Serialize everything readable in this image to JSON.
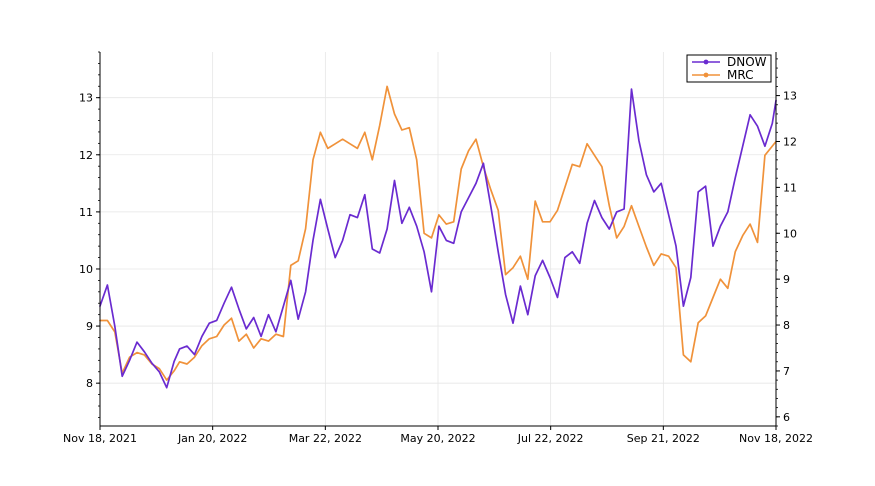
{
  "chart_data": {
    "type": "line",
    "grid": true,
    "legend_position": "top-right",
    "x_ticks": [
      "Nov 18, 2021",
      "Jan 20, 2022",
      "Mar 22, 2022",
      "May 20, 2022",
      "Jul 22, 2022",
      "Sep 21, 2022",
      "Nov 18, 2022"
    ],
    "x_range": [
      "2021-11-18",
      "2022-11-18"
    ],
    "y_left": {
      "ticks": [
        "8",
        "9",
        "10",
        "11",
        "12",
        "13"
      ],
      "ylim": [
        7.25,
        13.8
      ]
    },
    "y_right": {
      "ticks": [
        "6",
        "7",
        "8",
        "9",
        "10",
        "11",
        "12",
        "13"
      ],
      "ylim": [
        5.8,
        13.95
      ]
    },
    "series": [
      {
        "name": "DNOW",
        "axis": "left",
        "color": "#6a2bd0",
        "points": [
          [
            "2021-11-18",
            9.35
          ],
          [
            "2021-11-22",
            9.72
          ],
          [
            "2021-11-26",
            9.0
          ],
          [
            "2021-11-30",
            8.12
          ],
          [
            "2021-12-04",
            8.4
          ],
          [
            "2021-12-08",
            8.72
          ],
          [
            "2021-12-12",
            8.55
          ],
          [
            "2021-12-16",
            8.35
          ],
          [
            "2021-12-20",
            8.2
          ],
          [
            "2021-12-24",
            7.92
          ],
          [
            "2021-12-28",
            8.38
          ],
          [
            "2021-12-31",
            8.6
          ],
          [
            "2022-01-04",
            8.65
          ],
          [
            "2022-01-08",
            8.5
          ],
          [
            "2022-01-12",
            8.82
          ],
          [
            "2022-01-16",
            9.05
          ],
          [
            "2022-01-20",
            9.1
          ],
          [
            "2022-01-24",
            9.4
          ],
          [
            "2022-01-28",
            9.68
          ],
          [
            "2022-02-01",
            9.3
          ],
          [
            "2022-02-05",
            8.95
          ],
          [
            "2022-02-09",
            9.15
          ],
          [
            "2022-02-13",
            8.82
          ],
          [
            "2022-02-17",
            9.2
          ],
          [
            "2022-02-21",
            8.9
          ],
          [
            "2022-02-25",
            9.35
          ],
          [
            "2022-03-01",
            9.8
          ],
          [
            "2022-03-05",
            9.12
          ],
          [
            "2022-03-09",
            9.6
          ],
          [
            "2022-03-13",
            10.5
          ],
          [
            "2022-03-17",
            11.22
          ],
          [
            "2022-03-21",
            10.7
          ],
          [
            "2022-03-25",
            10.2
          ],
          [
            "2022-03-29",
            10.5
          ],
          [
            "2022-04-02",
            10.95
          ],
          [
            "2022-04-06",
            10.9
          ],
          [
            "2022-04-10",
            11.3
          ],
          [
            "2022-04-14",
            10.35
          ],
          [
            "2022-04-18",
            10.28
          ],
          [
            "2022-04-22",
            10.7
          ],
          [
            "2022-04-26",
            11.55
          ],
          [
            "2022-04-30",
            10.8
          ],
          [
            "2022-05-04",
            11.08
          ],
          [
            "2022-05-08",
            10.75
          ],
          [
            "2022-05-12",
            10.3
          ],
          [
            "2022-05-16",
            9.6
          ],
          [
            "2022-05-20",
            10.75
          ],
          [
            "2022-05-24",
            10.5
          ],
          [
            "2022-05-28",
            10.45
          ],
          [
            "2022-06-01",
            11.0
          ],
          [
            "2022-06-05",
            11.25
          ],
          [
            "2022-06-09",
            11.5
          ],
          [
            "2022-06-13",
            11.85
          ],
          [
            "2022-06-17",
            11.1
          ],
          [
            "2022-06-21",
            10.3
          ],
          [
            "2022-06-25",
            9.55
          ],
          [
            "2022-06-29",
            9.05
          ],
          [
            "2022-07-03",
            9.7
          ],
          [
            "2022-07-07",
            9.2
          ],
          [
            "2022-07-11",
            9.88
          ],
          [
            "2022-07-15",
            10.15
          ],
          [
            "2022-07-19",
            9.85
          ],
          [
            "2022-07-23",
            9.5
          ],
          [
            "2022-07-27",
            10.2
          ],
          [
            "2022-07-31",
            10.3
          ],
          [
            "2022-08-04",
            10.1
          ],
          [
            "2022-08-08",
            10.8
          ],
          [
            "2022-08-12",
            11.2
          ],
          [
            "2022-08-16",
            10.9
          ],
          [
            "2022-08-20",
            10.7
          ],
          [
            "2022-08-24",
            11.0
          ],
          [
            "2022-08-28",
            11.05
          ],
          [
            "2022-09-01",
            13.15
          ],
          [
            "2022-09-05",
            12.25
          ],
          [
            "2022-09-09",
            11.65
          ],
          [
            "2022-09-13",
            11.35
          ],
          [
            "2022-09-17",
            11.5
          ],
          [
            "2022-09-21",
            10.95
          ],
          [
            "2022-09-25",
            10.4
          ],
          [
            "2022-09-29",
            9.35
          ],
          [
            "2022-10-03",
            9.85
          ],
          [
            "2022-10-07",
            11.35
          ],
          [
            "2022-10-11",
            11.45
          ],
          [
            "2022-10-15",
            10.4
          ],
          [
            "2022-10-19",
            10.75
          ],
          [
            "2022-10-23",
            11.0
          ],
          [
            "2022-10-27",
            11.6
          ],
          [
            "2022-10-31",
            12.15
          ],
          [
            "2022-11-04",
            12.7
          ],
          [
            "2022-11-08",
            12.5
          ],
          [
            "2022-11-12",
            12.15
          ],
          [
            "2022-11-16",
            12.55
          ],
          [
            "2022-11-18",
            12.95
          ]
        ]
      },
      {
        "name": "MRC",
        "axis": "right",
        "color": "#f0923a",
        "points": [
          [
            "2021-11-18",
            8.1
          ],
          [
            "2021-11-22",
            8.1
          ],
          [
            "2021-11-26",
            7.85
          ],
          [
            "2021-11-30",
            6.95
          ],
          [
            "2021-12-04",
            7.3
          ],
          [
            "2021-12-08",
            7.4
          ],
          [
            "2021-12-12",
            7.35
          ],
          [
            "2021-12-16",
            7.15
          ],
          [
            "2021-12-20",
            7.05
          ],
          [
            "2021-12-24",
            6.8
          ],
          [
            "2021-12-28",
            7.0
          ],
          [
            "2021-12-31",
            7.2
          ],
          [
            "2022-01-04",
            7.15
          ],
          [
            "2022-01-08",
            7.3
          ],
          [
            "2022-01-12",
            7.55
          ],
          [
            "2022-01-16",
            7.7
          ],
          [
            "2022-01-20",
            7.75
          ],
          [
            "2022-01-24",
            8.0
          ],
          [
            "2022-01-28",
            8.15
          ],
          [
            "2022-02-01",
            7.65
          ],
          [
            "2022-02-05",
            7.8
          ],
          [
            "2022-02-09",
            7.5
          ],
          [
            "2022-02-13",
            7.7
          ],
          [
            "2022-02-17",
            7.65
          ],
          [
            "2022-02-21",
            7.8
          ],
          [
            "2022-02-25",
            7.75
          ],
          [
            "2022-03-01",
            9.3
          ],
          [
            "2022-03-05",
            9.4
          ],
          [
            "2022-03-09",
            10.1
          ],
          [
            "2022-03-13",
            11.6
          ],
          [
            "2022-03-17",
            12.2
          ],
          [
            "2022-03-21",
            11.85
          ],
          [
            "2022-03-25",
            11.95
          ],
          [
            "2022-03-29",
            12.05
          ],
          [
            "2022-04-02",
            11.95
          ],
          [
            "2022-04-06",
            11.85
          ],
          [
            "2022-04-10",
            12.2
          ],
          [
            "2022-04-14",
            11.6
          ],
          [
            "2022-04-18",
            12.35
          ],
          [
            "2022-04-22",
            13.2
          ],
          [
            "2022-04-26",
            12.6
          ],
          [
            "2022-04-30",
            12.25
          ],
          [
            "2022-05-04",
            12.3
          ],
          [
            "2022-05-08",
            11.6
          ],
          [
            "2022-05-12",
            10.0
          ],
          [
            "2022-05-16",
            9.9
          ],
          [
            "2022-05-20",
            10.4
          ],
          [
            "2022-05-24",
            10.2
          ],
          [
            "2022-05-28",
            10.25
          ],
          [
            "2022-06-01",
            11.4
          ],
          [
            "2022-06-05",
            11.8
          ],
          [
            "2022-06-09",
            12.05
          ],
          [
            "2022-06-13",
            11.45
          ],
          [
            "2022-06-17",
            10.95
          ],
          [
            "2022-06-21",
            10.5
          ],
          [
            "2022-06-25",
            9.1
          ],
          [
            "2022-06-29",
            9.25
          ],
          [
            "2022-07-03",
            9.5
          ],
          [
            "2022-07-07",
            9.0
          ],
          [
            "2022-07-11",
            10.7
          ],
          [
            "2022-07-15",
            10.25
          ],
          [
            "2022-07-19",
            10.25
          ],
          [
            "2022-07-23",
            10.5
          ],
          [
            "2022-07-27",
            11.0
          ],
          [
            "2022-07-31",
            11.5
          ],
          [
            "2022-08-04",
            11.45
          ],
          [
            "2022-08-08",
            11.95
          ],
          [
            "2022-08-12",
            11.7
          ],
          [
            "2022-08-16",
            11.45
          ],
          [
            "2022-08-20",
            10.6
          ],
          [
            "2022-08-24",
            9.9
          ],
          [
            "2022-08-28",
            10.15
          ],
          [
            "2022-09-01",
            10.6
          ],
          [
            "2022-09-05",
            10.15
          ],
          [
            "2022-09-09",
            9.7
          ],
          [
            "2022-09-13",
            9.3
          ],
          [
            "2022-09-17",
            9.55
          ],
          [
            "2022-09-21",
            9.5
          ],
          [
            "2022-09-25",
            9.25
          ],
          [
            "2022-09-29",
            7.35
          ],
          [
            "2022-10-03",
            7.2
          ],
          [
            "2022-10-07",
            8.05
          ],
          [
            "2022-10-11",
            8.2
          ],
          [
            "2022-10-15",
            8.6
          ],
          [
            "2022-10-19",
            9.0
          ],
          [
            "2022-10-23",
            8.8
          ],
          [
            "2022-10-27",
            9.6
          ],
          [
            "2022-10-31",
            9.95
          ],
          [
            "2022-11-04",
            10.2
          ],
          [
            "2022-11-08",
            9.8
          ],
          [
            "2022-11-12",
            11.7
          ],
          [
            "2022-11-16",
            11.9
          ],
          [
            "2022-11-18",
            12.0
          ]
        ]
      }
    ]
  }
}
